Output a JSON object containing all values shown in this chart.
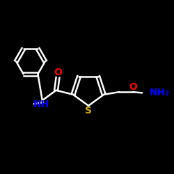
{
  "background_color": "#000000",
  "bond_color": "#ffffff",
  "atom_colors": {
    "O": "#ff0000",
    "N": "#0000ff",
    "S": "#ccaa00",
    "C": "#ffffff",
    "H": "#ffffff"
  },
  "figsize": [
    2.5,
    2.5
  ],
  "dpi": 100,
  "bond_lw": 1.8
}
